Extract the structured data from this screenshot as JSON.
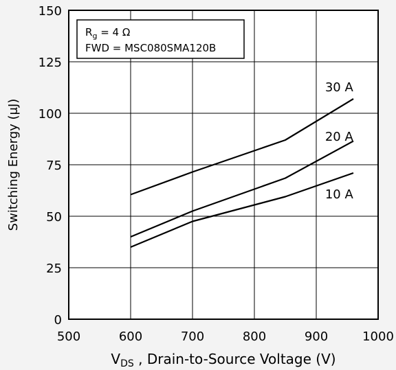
{
  "chart_data": {
    "type": "line",
    "xlabel_main": "V",
    "xlabel_sub": "DS",
    "xlabel_rest": " , Drain-to-Source Voltage (V)",
    "ylabel": "Switching Energy (μJ)",
    "xlim": [
      500,
      1000
    ],
    "ylim": [
      0,
      150
    ],
    "xticks": [
      "500",
      "600",
      "700",
      "800",
      "900",
      "1000"
    ],
    "yticks": [
      "0",
      "25",
      "50",
      "75",
      "100",
      "125",
      "150"
    ],
    "grid": true,
    "legend": {
      "line1_main": "R",
      "line1_sub": "g",
      "line1_rest": " = 4 Ω",
      "line2": "FWD = MSC080SMA120B",
      "placement": "top-left"
    },
    "series": [
      {
        "name": "30 A",
        "x": [
          600,
          700,
          850,
          960
        ],
        "y": [
          60.5,
          71.5,
          87,
          107
        ],
        "label_at": [
          962,
          113
        ]
      },
      {
        "name": "20 A",
        "x": [
          600,
          700,
          850,
          960
        ],
        "y": [
          40,
          52.5,
          68.5,
          86.5
        ],
        "label_at": [
          962,
          89
        ]
      },
      {
        "name": "10 A",
        "x": [
          600,
          700,
          850,
          960
        ],
        "y": [
          35,
          47.5,
          59.5,
          71
        ],
        "label_at": [
          962,
          61
        ]
      }
    ]
  }
}
